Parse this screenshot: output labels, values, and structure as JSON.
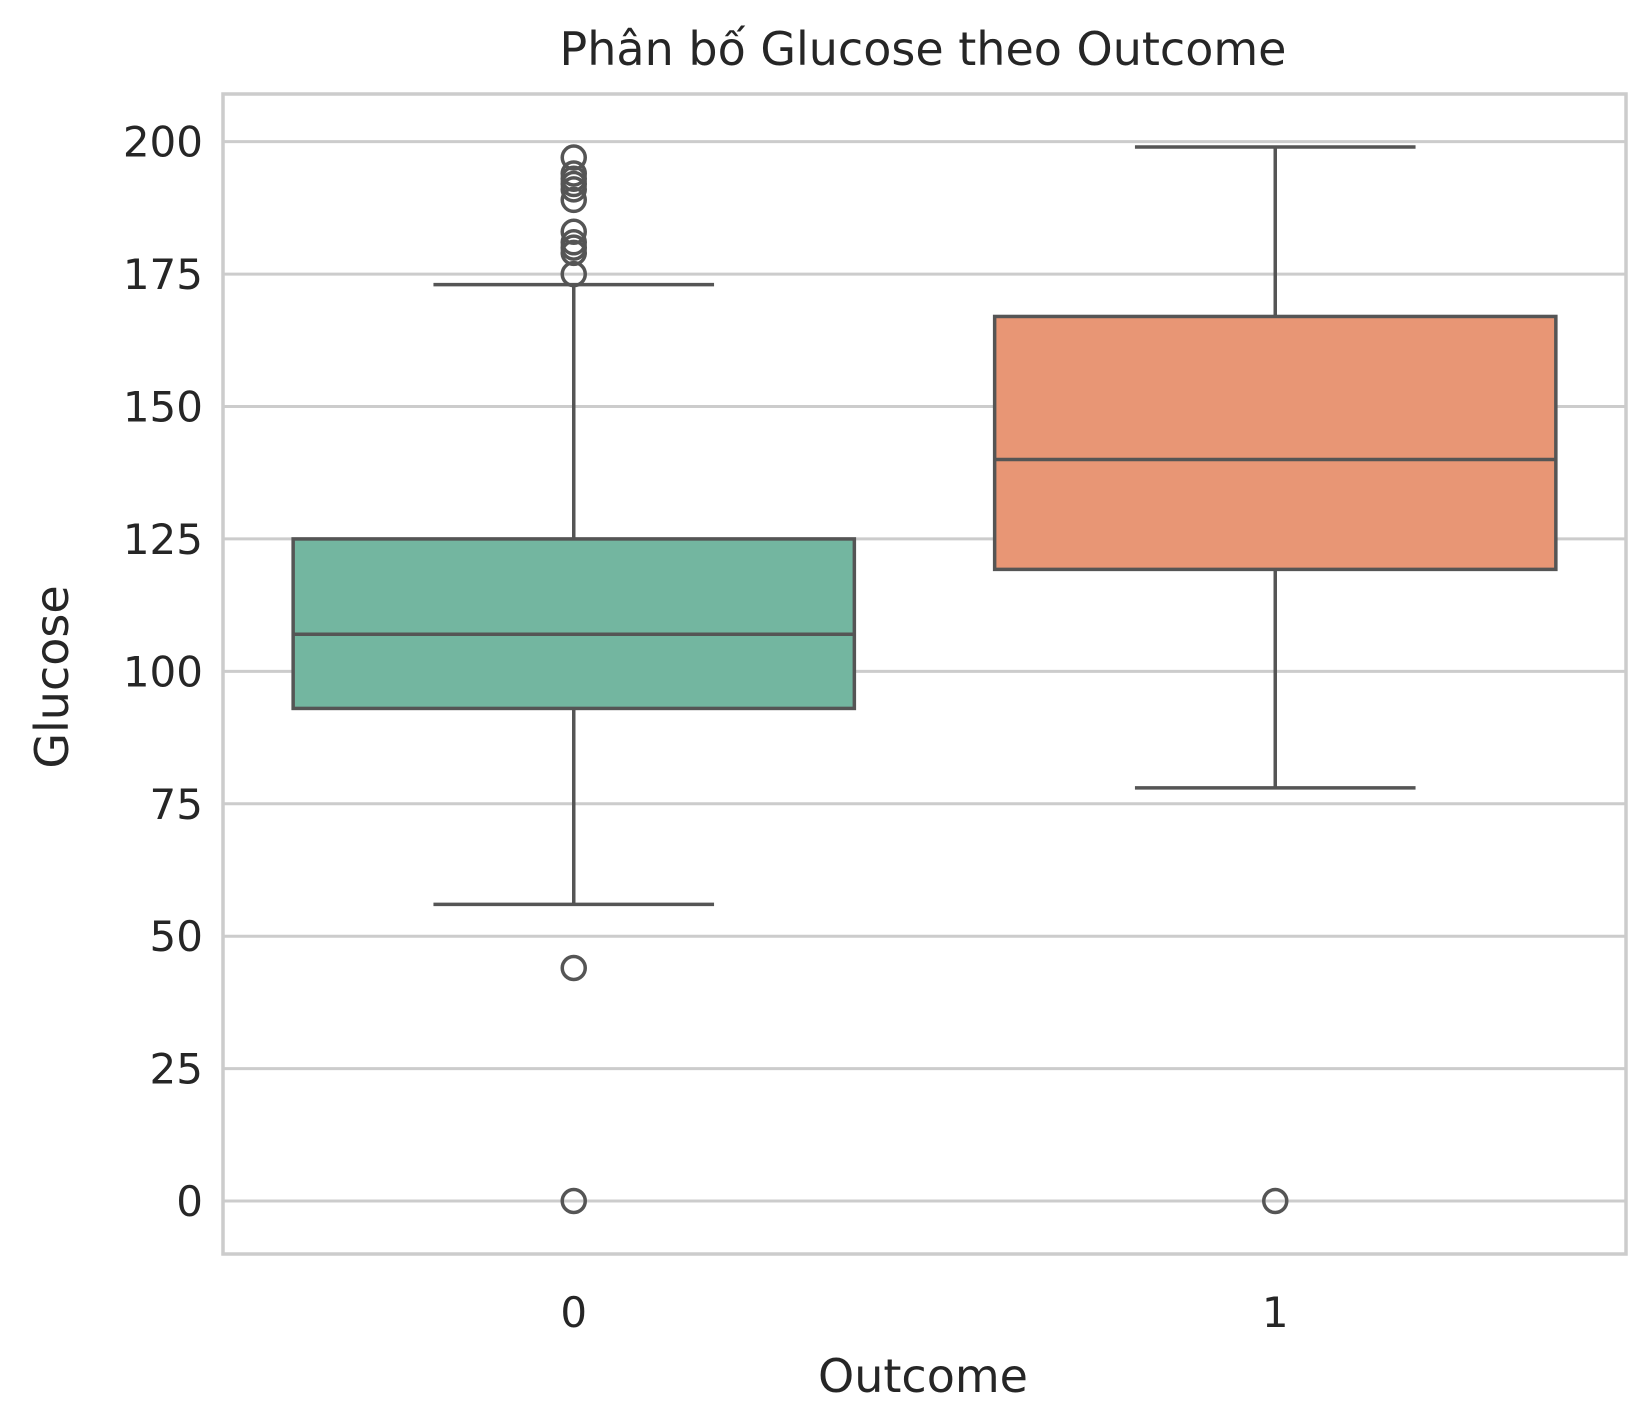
{
  "chart_data": {
    "type": "box",
    "title": "Phân bố Glucose theo Outcome",
    "xlabel": "Outcome",
    "ylabel": "Glucose",
    "categories": [
      "0",
      "1"
    ],
    "ylim": [
      -10,
      209
    ],
    "yticks": [
      0,
      25,
      50,
      75,
      100,
      125,
      150,
      175,
      200
    ],
    "grid": "horizontal",
    "colors": {
      "box_edge": "#555555",
      "grid": "#cccccc",
      "frame": "#cccccc"
    },
    "series": [
      {
        "category": "0",
        "color": "#73b6a0",
        "whisker_low": 56,
        "q1": 93,
        "median": 107,
        "q3": 125,
        "whisker_high": 173,
        "outliers": [
          0,
          44,
          175,
          179,
          180,
          181,
          183,
          189,
          191,
          192,
          193,
          194,
          197
        ]
      },
      {
        "category": "1",
        "color": "#e89675",
        "whisker_low": 78,
        "q1": 119.25,
        "median": 140,
        "q3": 167,
        "whisker_high": 199,
        "outliers": [
          0
        ]
      }
    ]
  }
}
